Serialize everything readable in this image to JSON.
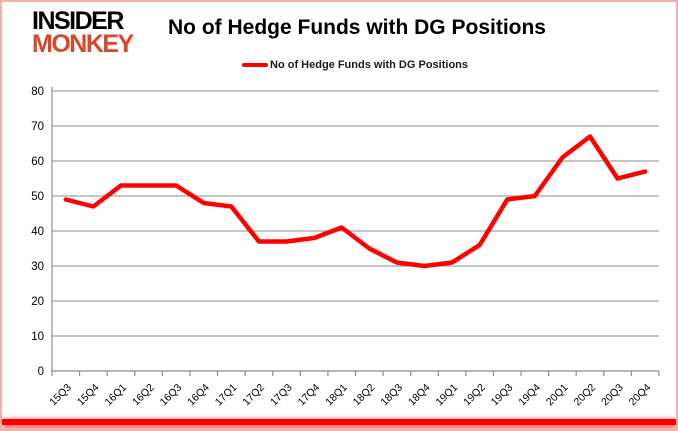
{
  "logo": {
    "line1": "INSIDER",
    "line2": "MONKEY",
    "line1_color": "#000000",
    "line2_color": "#d9472b"
  },
  "header": {
    "title": "No of Hedge Funds with DG Positions"
  },
  "legend": {
    "label": "No of Hedge Funds with DG Positions",
    "swatch_color": "#FF0000"
  },
  "colors": {
    "line": "#FF0000",
    "grid": "#8c8c8c",
    "axis": "#8c8c8c",
    "tick_label": "#000000",
    "frame_border": "#f5b1a8",
    "bottom_bar": "#FF0000",
    "background": "#ffffff"
  },
  "chart_data": {
    "type": "line",
    "title": "No of Hedge Funds with DG Positions",
    "xlabel": "",
    "ylabel": "",
    "categories": [
      "15Q3",
      "15Q4",
      "16Q1",
      "16Q2",
      "16Q3",
      "16Q4",
      "17Q1",
      "17Q2",
      "17Q3",
      "17Q4",
      "18Q1",
      "18Q2",
      "18Q3",
      "18Q4",
      "19Q1",
      "19Q2",
      "19Q3",
      "19Q4",
      "20Q1",
      "20Q2",
      "20Q3",
      "20Q4"
    ],
    "series": [
      {
        "name": "No of Hedge Funds with DG Positions",
        "color": "#FF0000",
        "values": [
          49,
          47,
          53,
          53,
          53,
          48,
          47,
          37,
          37,
          38,
          41,
          35,
          31,
          30,
          31,
          36,
          49,
          50,
          61,
          67,
          55,
          57
        ]
      }
    ],
    "ylim": [
      0,
      80
    ],
    "ytick_step": 10,
    "yticks": [
      0,
      10,
      20,
      30,
      40,
      50,
      60,
      70,
      80
    ],
    "grid": true,
    "legend_position": "top"
  }
}
